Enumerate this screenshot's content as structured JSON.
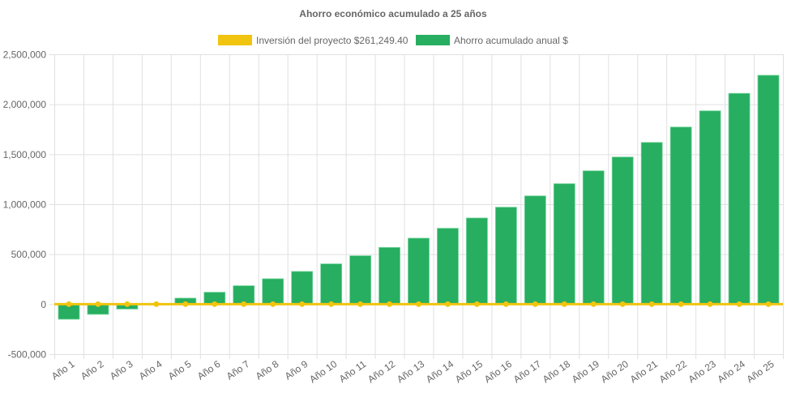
{
  "chart_data": {
    "type": "bar",
    "title": "Ahorro económico acumulado a 25 años",
    "xlabel": "",
    "ylabel": "",
    "ylim": [
      -500000,
      2500000
    ],
    "yticks": [
      -500000,
      0,
      500000,
      1000000,
      1500000,
      2000000,
      2500000
    ],
    "ytick_labels": [
      "-500,000",
      "0",
      "500,000",
      "1,000,000",
      "1,500,000",
      "2,000,000",
      "2,500,000"
    ],
    "grid": true,
    "legend_position": "top",
    "categories": [
      "Año 1",
      "Año 2",
      "Año 3",
      "Año 4",
      "Año 5",
      "Año 6",
      "Año 7",
      "Año 8",
      "Año 9",
      "Año 10",
      "Año 11",
      "Año 12",
      "Año 13",
      "Año 14",
      "Año 15",
      "Año 16",
      "Año 17",
      "Año 18",
      "Año 19",
      "Año 20",
      "Año 21",
      "Año 22",
      "Año 23",
      "Año 24",
      "Año 25"
    ],
    "series": [
      {
        "name": "Inversión del proyecto $261,249.40",
        "type": "line",
        "color": "#f1c40f",
        "values": [
          0,
          0,
          0,
          0,
          0,
          0,
          0,
          0,
          0,
          0,
          0,
          0,
          0,
          0,
          0,
          0,
          0,
          0,
          0,
          0,
          0,
          0,
          0,
          0,
          0
        ]
      },
      {
        "name": "Ahorro acumulado anual $",
        "type": "bar",
        "color": "#27ae60",
        "values": [
          -151000,
          -102000,
          -49000,
          0,
          60000,
          119000,
          184000,
          254000,
          327000,
          403000,
          484000,
          567000,
          660000,
          759000,
          862000,
          970000,
          1083000,
          1205000,
          1334000,
          1472000,
          1618000,
          1772000,
          1934000,
          2109000,
          2290000
        ]
      }
    ]
  }
}
